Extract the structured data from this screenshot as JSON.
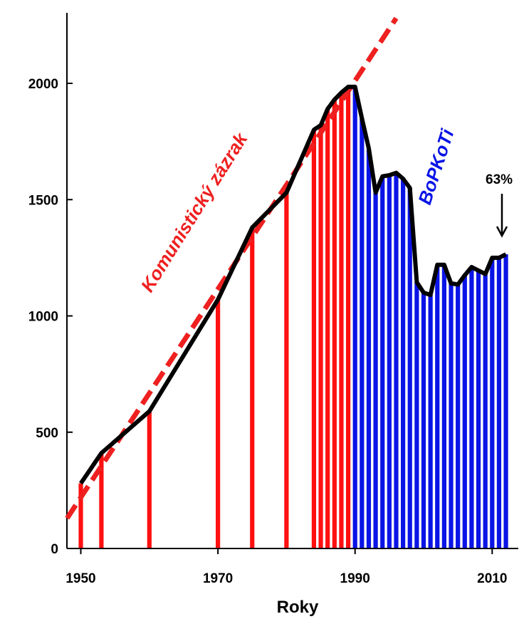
{
  "chart_data": {
    "type": "bar",
    "xlabel": "Roky",
    "ylabel": "",
    "xlim": [
      1948,
      2014
    ],
    "ylim": [
      0,
      2280
    ],
    "x_ticks": [
      1950,
      1970,
      1990,
      2010
    ],
    "y_ticks": [
      0,
      500,
      1000,
      1500,
      2000
    ],
    "grid": false,
    "colors": {
      "red_bars": "#ff1010",
      "blue_bars": "#0a14e6",
      "line": "#000000",
      "trend": "#ee2020"
    },
    "series": [
      {
        "name": "",
        "color": "#ff1010",
        "x": [
          1950,
          1953,
          1960,
          1970,
          1975,
          1980,
          1984,
          1985,
          1986,
          1987,
          1988,
          1989
        ],
        "values": [
          280,
          410,
          590,
          1070,
          1380,
          1530,
          1800,
          1820,
          1890,
          1930,
          1960,
          1985
        ]
      },
      {
        "name": "",
        "color": "#0a14e6",
        "x": [
          1990,
          1991,
          1992,
          1993,
          1994,
          1995,
          1996,
          1997,
          1998,
          1999,
          2000,
          2001,
          2002,
          2003,
          2004,
          2005,
          2006,
          2007,
          2008,
          2009,
          2010,
          2011,
          2012
        ],
        "values": [
          1985,
          1850,
          1720,
          1530,
          1600,
          1605,
          1615,
          1590,
          1550,
          1145,
          1100,
          1090,
          1220,
          1220,
          1140,
          1135,
          1175,
          1210,
          1195,
          1180,
          1250,
          1250,
          1265
        ]
      }
    ],
    "trend_line": {
      "x": [
        1948,
        1996
      ],
      "values": [
        130,
        2280
      ]
    },
    "annotations": {
      "red_label": "Komunistický zázrak",
      "blue_label": "BoPKoTi",
      "percent_label": "63%"
    }
  }
}
